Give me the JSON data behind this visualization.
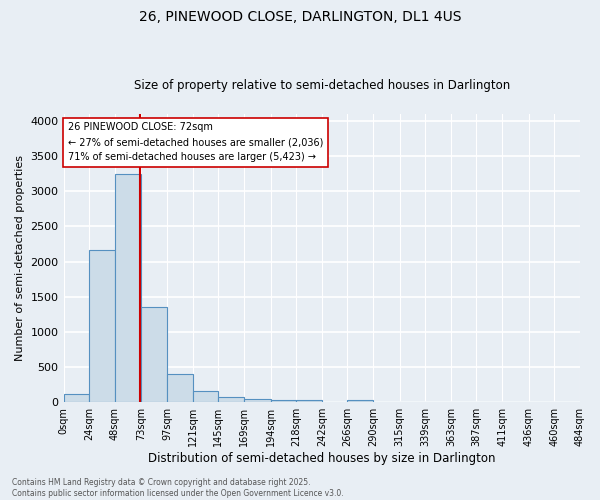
{
  "title1": "26, PINEWOOD CLOSE, DARLINGTON, DL1 4US",
  "title2": "Size of property relative to semi-detached houses in Darlington",
  "xlabel": "Distribution of semi-detached houses by size in Darlington",
  "ylabel": "Number of semi-detached properties",
  "bin_edges": [
    0,
    24,
    48,
    73,
    97,
    121,
    145,
    169,
    194,
    218,
    242,
    266,
    290,
    315,
    339,
    363,
    387,
    411,
    436,
    460,
    484
  ],
  "bar_heights": [
    110,
    2170,
    3250,
    1350,
    405,
    160,
    80,
    50,
    35,
    35,
    0,
    35,
    0,
    0,
    0,
    0,
    0,
    0,
    0,
    0
  ],
  "bar_color": "#ccdce8",
  "bar_edge_color": "#5590c0",
  "property_size": 72,
  "property_line_color": "#cc0000",
  "annotation_text": "26 PINEWOOD CLOSE: 72sqm\n← 27% of semi-detached houses are smaller (2,036)\n71% of semi-detached houses are larger (5,423) →",
  "annotation_box_color": "#ffffff",
  "annotation_box_edge": "#cc0000",
  "ylim": [
    0,
    4100
  ],
  "yticks": [
    0,
    500,
    1000,
    1500,
    2000,
    2500,
    3000,
    3500,
    4000
  ],
  "tick_labels": [
    "0sqm",
    "24sqm",
    "48sqm",
    "73sqm",
    "97sqm",
    "121sqm",
    "145sqm",
    "169sqm",
    "194sqm",
    "218sqm",
    "242sqm",
    "266sqm",
    "290sqm",
    "315sqm",
    "339sqm",
    "363sqm",
    "387sqm",
    "411sqm",
    "436sqm",
    "460sqm",
    "484sqm"
  ],
  "footer_text": "Contains HM Land Registry data © Crown copyright and database right 2025.\nContains public sector information licensed under the Open Government Licence v3.0.",
  "bg_color": "#e8eef4",
  "grid_color": "#ffffff"
}
